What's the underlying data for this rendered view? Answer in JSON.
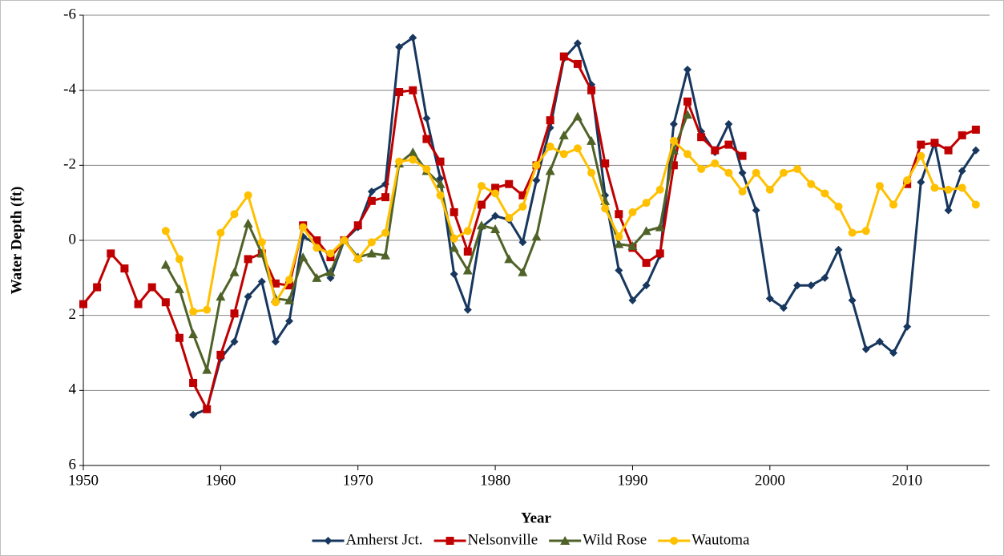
{
  "chart_data": {
    "type": "line",
    "x_label": "Year",
    "y_label": "Water Depth (ft)",
    "x": [
      1950,
      1951,
      1952,
      1953,
      1954,
      1955,
      1956,
      1957,
      1958,
      1959,
      1960,
      1961,
      1962,
      1963,
      1964,
      1965,
      1966,
      1967,
      1968,
      1969,
      1970,
      1971,
      1972,
      1973,
      1974,
      1975,
      1976,
      1977,
      1978,
      1979,
      1980,
      1981,
      1982,
      1983,
      1984,
      1985,
      1986,
      1987,
      1988,
      1989,
      1990,
      1991,
      1992,
      1993,
      1994,
      1995,
      1996,
      1997,
      1998,
      1999,
      2000,
      2001,
      2002,
      2003,
      2004,
      2005,
      2006,
      2007,
      2008,
      2009,
      2010,
      2011,
      2012,
      2013,
      2014,
      2015
    ],
    "xlim": [
      1950,
      2016
    ],
    "xticks": [
      1950,
      1960,
      1970,
      1980,
      1990,
      2000,
      2010
    ],
    "ylim": [
      -6,
      6
    ],
    "yticks": [
      -6,
      -4,
      -2,
      0,
      2,
      4,
      6
    ],
    "y_inverted": true,
    "grid": true,
    "legend": "bottom",
    "series": [
      {
        "name": "Amherst Jct.",
        "color": "#17375e",
        "marker": "diamond",
        "values": [
          null,
          null,
          null,
          null,
          null,
          null,
          null,
          null,
          4.65,
          4.5,
          3.15,
          2.7,
          1.5,
          1.1,
          2.7,
          2.15,
          -0.1,
          0.1,
          1.0,
          0,
          -0.35,
          -1.3,
          -1.5,
          -5.15,
          -5.4,
          -3.25,
          -1.65,
          0.9,
          1.85,
          -0.35,
          -0.65,
          -0.55,
          0.05,
          -1.6,
          -3.0,
          -4.85,
          -5.25,
          -4.15,
          -1.2,
          0.8,
          1.6,
          1.2,
          0.4,
          -3.1,
          -4.55,
          -2.9,
          -2.35,
          -3.1,
          -1.8,
          -0.8,
          1.55,
          1.8,
          1.2,
          1.2,
          1.0,
          0.25,
          1.6,
          2.9,
          2.7,
          3.0,
          2.3,
          -1.55,
          -2.6,
          -0.8,
          -1.85,
          -2.4
        ]
      },
      {
        "name": "Nelsonville",
        "color": "#c00000",
        "marker": "square",
        "values": [
          1.7,
          1.25,
          0.35,
          0.75,
          1.7,
          1.25,
          1.65,
          2.6,
          3.8,
          4.5,
          3.05,
          1.95,
          0.5,
          0.35,
          1.15,
          1.2,
          -0.4,
          0,
          0.45,
          0,
          -0.4,
          -1.05,
          -1.15,
          -3.95,
          -4.0,
          -2.7,
          -2.1,
          -0.75,
          0.3,
          -0.95,
          -1.4,
          -1.5,
          -1.2,
          -2.0,
          -3.2,
          -4.9,
          -4.7,
          -4.0,
          -2.05,
          -0.7,
          0.2,
          0.6,
          0.35,
          -2.0,
          -3.7,
          -2.75,
          -2.4,
          -2.55,
          -2.25,
          null,
          null,
          null,
          null,
          null,
          null,
          null,
          null,
          null,
          null,
          null,
          -1.5,
          -2.55,
          -2.6,
          -2.4,
          -2.8,
          -2.95
        ]
      },
      {
        "name": "Wild Rose",
        "color": "#4f6228",
        "marker": "triangle",
        "values": [
          null,
          null,
          null,
          null,
          null,
          null,
          0.65,
          1.3,
          2.5,
          3.45,
          1.5,
          0.85,
          -0.45,
          0.35,
          1.55,
          1.6,
          0.45,
          1.0,
          0.85,
          0,
          0.45,
          0.35,
          0.4,
          -2.05,
          -2.35,
          -1.85,
          -1.5,
          0.2,
          0.8,
          -0.4,
          -0.3,
          0.5,
          0.85,
          -0.1,
          -1.85,
          -2.8,
          -3.3,
          -2.65,
          -1.05,
          0.1,
          0.15,
          -0.25,
          -0.35,
          -2.4,
          -3.35,
          null,
          null,
          null,
          null,
          null,
          null,
          null,
          null,
          null,
          null,
          null,
          null,
          null,
          null,
          null,
          null,
          null,
          null,
          null,
          null,
          null
        ]
      },
      {
        "name": "Wautoma",
        "color": "#ffc000",
        "marker": "circle",
        "values": [
          null,
          null,
          null,
          null,
          null,
          null,
          -0.25,
          0.5,
          1.9,
          1.85,
          -0.2,
          -0.7,
          -1.2,
          0.05,
          1.65,
          1.05,
          -0.35,
          0.2,
          0.35,
          0,
          0.5,
          0.05,
          -0.2,
          -2.1,
          -2.15,
          -1.9,
          -1.2,
          -0.05,
          -0.25,
          -1.45,
          -1.25,
          -0.6,
          -0.9,
          -2.0,
          -2.5,
          -2.3,
          -2.45,
          -1.8,
          -0.85,
          -0.1,
          -0.75,
          -1.0,
          -1.35,
          -2.65,
          -2.3,
          -1.9,
          -2.05,
          -1.8,
          -1.3,
          -1.8,
          -1.35,
          -1.8,
          -1.9,
          -1.5,
          -1.25,
          -0.9,
          -0.2,
          -0.25,
          -1.45,
          -0.95,
          -1.6,
          -2.25,
          -1.4,
          -1.35,
          -1.4,
          -0.95
        ]
      }
    ]
  }
}
